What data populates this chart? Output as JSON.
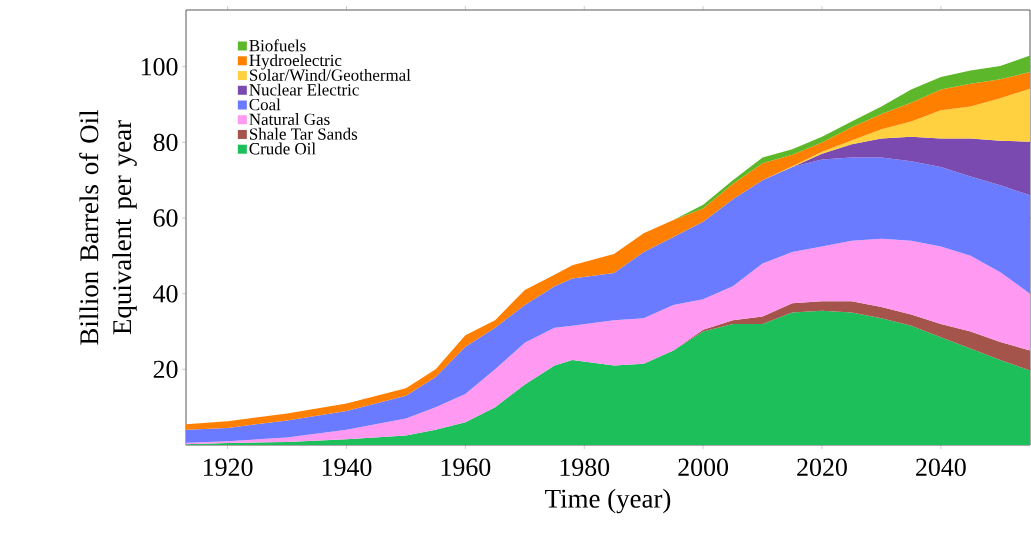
{
  "chart_data": {
    "type": "area",
    "stacked": true,
    "xlabel": "Time (year)",
    "ylabel": "Billion Barrels of Oil Equivalent per year",
    "x": [
      1913,
      1920,
      1930,
      1940,
      1950,
      1955,
      1960,
      1965,
      1970,
      1975,
      1978,
      1985,
      1990,
      1995,
      2000,
      2005,
      2010,
      2015,
      2020,
      2025,
      2030,
      2035,
      2040,
      2045,
      2050,
      2055
    ],
    "series": [
      {
        "name": "Crude Oil",
        "color": "#1dbf5a",
        "values": [
          0.2,
          0.5,
          0.8,
          1.5,
          2.5,
          4,
          6,
          10,
          16,
          21,
          22.5,
          21,
          21.5,
          25,
          30,
          32,
          32,
          35,
          35.5,
          35,
          33.5,
          31.5,
          28.5,
          25.5,
          22.5,
          19.7
        ]
      },
      {
        "name": "Shale Tar Sands",
        "color": "#a5544c",
        "values": [
          0,
          0,
          0,
          0,
          0,
          0,
          0,
          0,
          0,
          0,
          0,
          0,
          0,
          0,
          0.5,
          1,
          2,
          2.5,
          2.5,
          3,
          3,
          3,
          3.5,
          4.5,
          4.7,
          5.3
        ]
      },
      {
        "name": "Natural Gas",
        "color": "#ff99f2",
        "values": [
          0.4,
          0.5,
          1.2,
          2.5,
          4.5,
          6,
          7.5,
          10,
          11,
          10,
          9,
          12,
          12,
          12,
          8,
          9,
          14,
          13.5,
          14.5,
          16,
          18,
          19.5,
          20.5,
          20,
          18.5,
          15
        ]
      },
      {
        "name": "Coal",
        "color": "#6b7bff",
        "values": [
          3.4,
          3.5,
          4.5,
          5,
          6,
          8,
          12.5,
          11,
          10,
          11,
          12.5,
          12.5,
          17.5,
          18,
          20.5,
          23,
          22,
          22.5,
          23,
          22,
          21.5,
          21,
          21,
          21,
          23,
          26
        ]
      },
      {
        "name": "Nuclear Electric",
        "color": "#7a4ab0",
        "values": [
          0,
          0,
          0,
          0,
          0,
          0,
          0,
          0,
          0,
          0,
          0,
          0,
          0,
          0,
          0,
          0,
          0,
          0,
          1.5,
          3.5,
          5,
          6.5,
          7.5,
          10,
          11.7,
          14.2
        ]
      },
      {
        "name": "Solar/Wind/Geothermal",
        "color": "#ffd040",
        "values": [
          0,
          0,
          0,
          0,
          0,
          0,
          0,
          0,
          0,
          0,
          0,
          0,
          0,
          0,
          0,
          0,
          0,
          0.2,
          0.5,
          1,
          2.5,
          4,
          7.5,
          8.5,
          11.3,
          14
        ]
      },
      {
        "name": "Hydroelectric",
        "color": "#ff8000",
        "values": [
          1.5,
          1.8,
          1.8,
          2,
          2,
          2,
          3,
          2,
          4,
          3,
          3.5,
          5,
          5,
          4.5,
          3.5,
          4,
          4.5,
          3,
          2.5,
          3.5,
          4,
          5,
          5.5,
          6,
          5,
          4.4
        ]
      },
      {
        "name": "Biofuels",
        "color": "#5cb82a",
        "values": [
          0,
          0,
          0,
          0,
          0,
          0,
          0,
          0,
          0,
          0,
          0,
          0,
          0,
          0,
          1,
          1,
          1.5,
          1.5,
          1.5,
          1.5,
          2,
          3.5,
          3.3,
          3.5,
          3.5,
          4.4
        ]
      }
    ],
    "xlim": [
      1913,
      2055
    ],
    "ylim": [
      0,
      115
    ],
    "xticks": [
      1920,
      1940,
      1960,
      1980,
      2000,
      2020,
      2040
    ],
    "yticks": [
      20,
      40,
      60,
      80,
      100
    ],
    "grid": false,
    "legend": "top left"
  }
}
